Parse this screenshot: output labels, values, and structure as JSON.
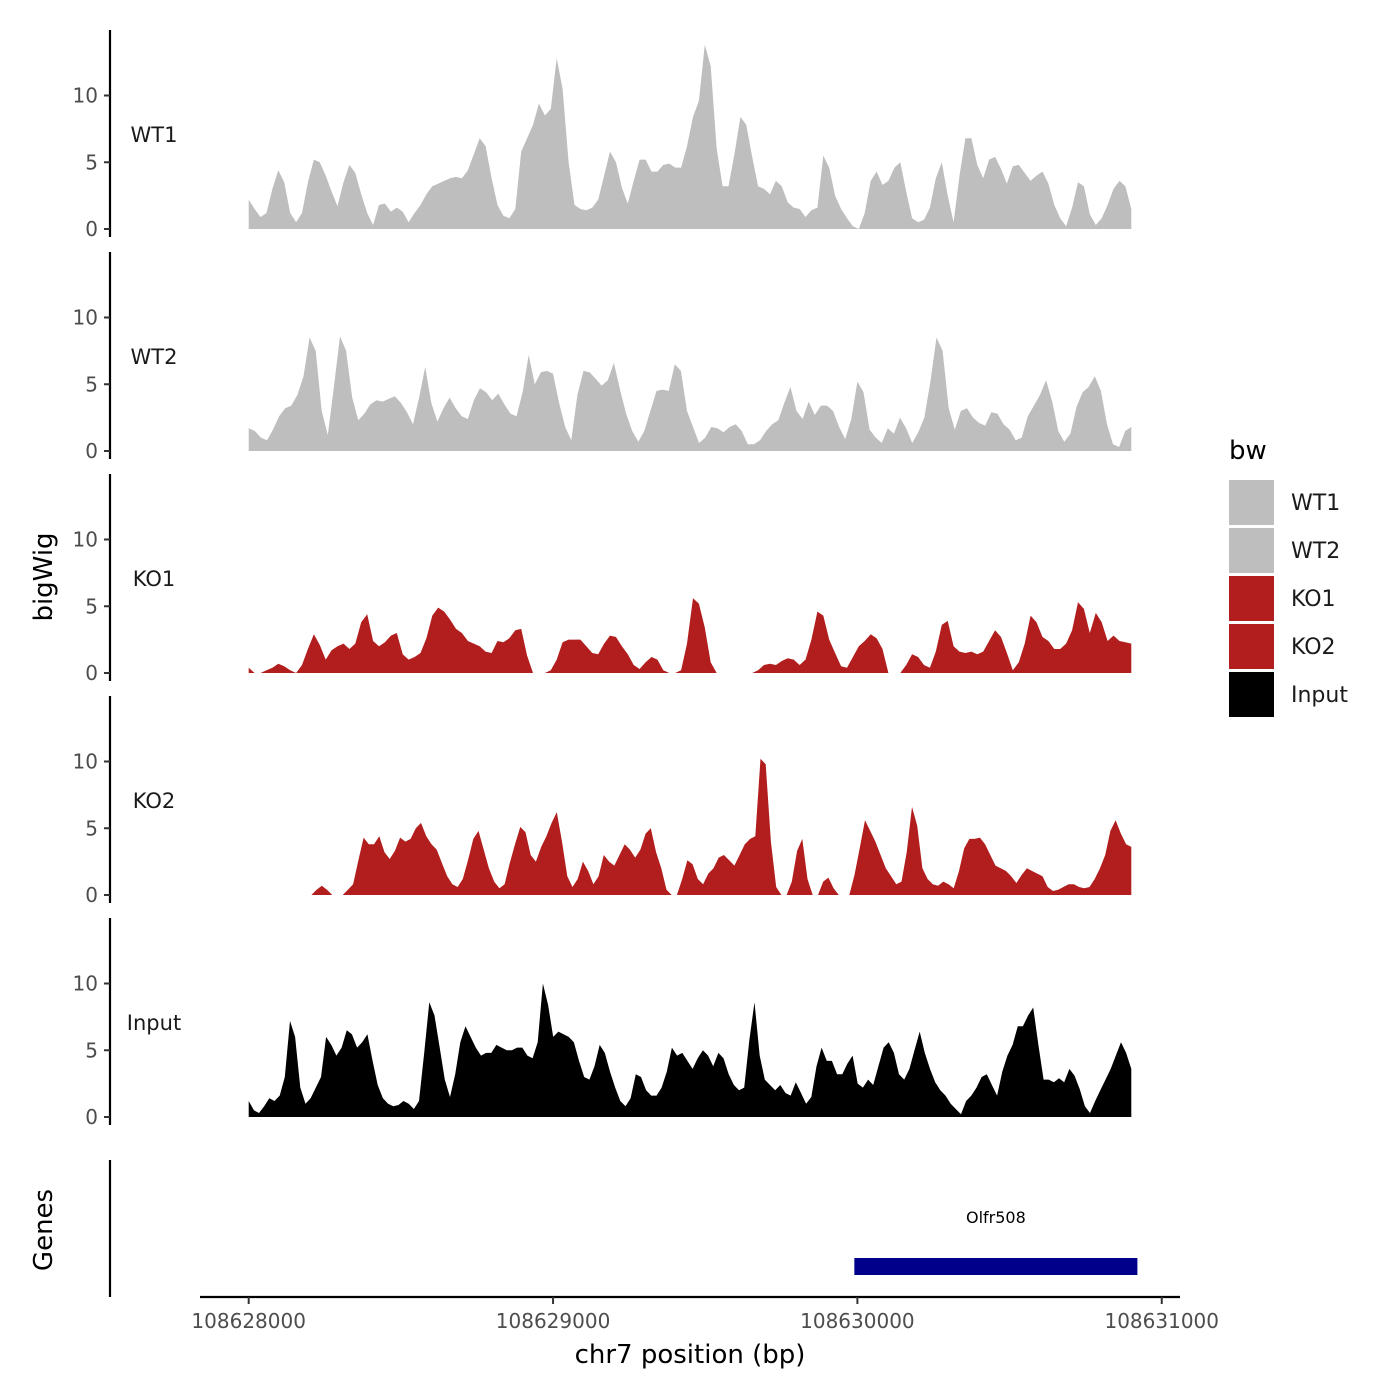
{
  "chart_data": {
    "type": "area",
    "title": "",
    "ylabel": "bigWig",
    "xlabel": "chr7 position (bp)",
    "xlim": [
      108627840,
      108631060
    ],
    "ylim": [
      0,
      14.5
    ],
    "x_ticks": [
      108628000,
      108629000,
      108630000,
      108631000
    ],
    "x_tick_labels": [
      "108628000",
      "108629000",
      "108630000",
      "108631000"
    ],
    "y_ticks": [
      0,
      5,
      10
    ],
    "y_tick_labels": [
      "0",
      "5",
      "10"
    ],
    "legend": {
      "title": "bw",
      "position": "right",
      "entries": [
        {
          "label": "WT1",
          "color": "#bebebe"
        },
        {
          "label": "WT2",
          "color": "#bebebe"
        },
        {
          "label": "KO1",
          "color": "#b21e1e"
        },
        {
          "label": "KO2",
          "color": "#b21e1e"
        },
        {
          "label": "Input",
          "color": "#000000"
        }
      ]
    },
    "series": [
      {
        "name": "WT1",
        "color": "#bebebe",
        "x_start": 108628000,
        "x_end": 108630900,
        "values": [
          2.2,
          1.5,
          0.9,
          1.2,
          3.0,
          4.4,
          3.5,
          1.2,
          0.5,
          1.2,
          3.5,
          5.2,
          5.0,
          4.0,
          2.8,
          1.7,
          3.5,
          4.8,
          4.2,
          2.6,
          1.2,
          0.3,
          1.8,
          1.9,
          1.3,
          1.6,
          1.3,
          0.5,
          1.2,
          1.8,
          2.6,
          3.2,
          3.4,
          3.6,
          3.8,
          3.9,
          3.8,
          4.4,
          5.6,
          6.8,
          6.2,
          3.8,
          1.8,
          1.0,
          0.8,
          1.5,
          5.8,
          6.8,
          7.8,
          9.4,
          8.5,
          9.0,
          12.8,
          10.5,
          5.0,
          1.8,
          1.5,
          1.4,
          1.6,
          2.2,
          4.0,
          5.8,
          5.0,
          3.1,
          1.9,
          3.6,
          5.2,
          5.2,
          4.3,
          4.3,
          4.8,
          4.9,
          4.6,
          4.6,
          6.2,
          8.4,
          9.6,
          13.8,
          12.2,
          6.0,
          3.2,
          3.2,
          5.6,
          8.4,
          7.8,
          5.4,
          3.2,
          3.0,
          2.6,
          3.6,
          3.2,
          2.0,
          1.6,
          1.5,
          0.9,
          1.4,
          1.6,
          5.5,
          4.6,
          2.5,
          1.5,
          0.8,
          0.2,
          0,
          1.2,
          3.6,
          4.3,
          3.3,
          3.6,
          4.6,
          5.0,
          2.8,
          0.8,
          0.5,
          0.7,
          1.6,
          3.8,
          5.0,
          2.5,
          0.5,
          4.0,
          6.8,
          6.8,
          4.8,
          3.8,
          5.2,
          5.4,
          4.5,
          3.4,
          4.7,
          4.8,
          4.2,
          3.6,
          4.0,
          4.3,
          3.4,
          1.8,
          0.8,
          0.2,
          1.6,
          3.5,
          3.2,
          1.1,
          0.3,
          0.8,
          1.8,
          3.0,
          3.6,
          3.2,
          1.5
        ]
      },
      {
        "name": "WT2",
        "color": "#bebebe",
        "x_start": 108628000,
        "x_end": 108630900,
        "values": [
          1.7,
          1.5,
          1.0,
          0.8,
          1.6,
          2.6,
          3.2,
          3.4,
          4.2,
          5.6,
          8.5,
          7.5,
          3.0,
          1.2,
          4.8,
          8.6,
          7.5,
          4.0,
          2.3,
          2.8,
          3.5,
          3.8,
          3.7,
          3.9,
          4.1,
          3.6,
          2.9,
          2.0,
          4.0,
          6.3,
          3.6,
          2.2,
          3.2,
          4.0,
          3.2,
          2.6,
          2.4,
          3.8,
          4.7,
          4.4,
          3.8,
          4.3,
          3.5,
          2.8,
          2.6,
          4.4,
          7.2,
          5.0,
          5.9,
          6.0,
          5.8,
          3.6,
          1.8,
          0.8,
          4.2,
          6.0,
          5.9,
          5.4,
          4.9,
          5.3,
          6.6,
          4.6,
          2.8,
          1.5,
          0.7,
          1.5,
          3.0,
          4.5,
          4.6,
          4.5,
          6.5,
          6.0,
          3.0,
          1.8,
          0.6,
          1.0,
          1.8,
          1.7,
          1.4,
          1.8,
          2.0,
          1.5,
          0.5,
          0.5,
          0.8,
          1.5,
          2.0,
          2.3,
          3.6,
          4.8,
          3.0,
          2.4,
          3.7,
          2.7,
          3.4,
          3.4,
          3.0,
          1.8,
          0.9,
          2.4,
          5.2,
          4.4,
          1.6,
          1.0,
          0.6,
          1.7,
          1.3,
          2.5,
          1.7,
          0.6,
          1.4,
          2.5,
          5.2,
          8.5,
          7.5,
          3.2,
          1.6,
          3.0,
          3.2,
          2.5,
          2.1,
          1.9,
          2.9,
          2.8,
          2.0,
          1.6,
          0.8,
          1.0,
          2.6,
          3.4,
          4.2,
          5.3,
          3.7,
          1.5,
          0.7,
          1.3,
          3.3,
          4.4,
          4.8,
          5.6,
          4.5,
          2.0,
          0.5,
          0.3,
          1.5,
          1.8
        ]
      },
      {
        "name": "KO1",
        "color": "#b21e1e",
        "x_start": 108628000,
        "x_end": 108630900,
        "values": [
          0.4,
          0,
          0,
          0.2,
          0.4,
          0.7,
          0.5,
          0.2,
          0,
          0.6,
          1.8,
          2.9,
          2.1,
          1.0,
          1.7,
          2.0,
          2.2,
          1.8,
          2.2,
          3.8,
          4.4,
          2.4,
          2.0,
          2.3,
          2.8,
          3.0,
          1.4,
          1.0,
          1.2,
          1.5,
          2.6,
          4.3,
          4.9,
          4.6,
          4.0,
          3.3,
          3.0,
          2.4,
          2.2,
          2.0,
          1.6,
          1.5,
          2.4,
          2.3,
          2.6,
          3.2,
          3.3,
          1.3,
          0,
          0,
          0,
          0.2,
          1.0,
          2.3,
          2.5,
          2.5,
          2.5,
          2.0,
          1.5,
          1.4,
          2.2,
          2.8,
          2.7,
          2.0,
          1.4,
          0.6,
          0.3,
          0.8,
          1.2,
          1.0,
          0.2,
          0,
          0,
          0.2,
          2.2,
          5.6,
          5.2,
          3.4,
          0.8,
          0,
          0,
          0,
          0,
          0,
          0,
          0,
          0.2,
          0.6,
          0.7,
          0.6,
          0.9,
          1.1,
          1.0,
          0.6,
          1.0,
          2.5,
          4.6,
          4.3,
          2.5,
          1.5,
          0.5,
          0.4,
          1.2,
          2.0,
          2.4,
          2.9,
          2.6,
          1.8,
          0,
          0,
          0,
          0.6,
          1.4,
          1.2,
          0.6,
          0.4,
          1.6,
          3.6,
          3.9,
          2.0,
          1.6,
          1.5,
          1.6,
          1.4,
          1.6,
          2.4,
          3.2,
          2.7,
          1.5,
          0.2,
          0.8,
          2.2,
          4.3,
          3.8,
          2.7,
          2.4,
          1.8,
          1.8,
          2.2,
          3.2,
          5.3,
          4.8,
          3.0,
          4.5,
          3.8,
          2.4,
          2.8,
          2.4,
          2.3,
          2.2
        ]
      },
      {
        "name": "KO2",
        "color": "#b21e1e",
        "x_start": 108628000,
        "x_end": 108630900,
        "values": [
          0,
          0,
          0,
          0,
          0,
          0,
          0,
          0,
          0,
          0,
          0,
          0,
          0,
          0.4,
          0.7,
          0.4,
          0,
          0,
          0,
          0.4,
          0.8,
          2.6,
          4.3,
          3.8,
          3.8,
          4.4,
          3.2,
          2.7,
          3.3,
          4.3,
          4.0,
          4.2,
          5.0,
          5.4,
          4.4,
          3.8,
          3.4,
          2.4,
          1.4,
          0.8,
          0.6,
          1.2,
          2.6,
          4.2,
          4.8,
          3.4,
          2.0,
          1.0,
          0.5,
          0.8,
          2.4,
          3.8,
          5.1,
          4.7,
          3.0,
          2.5,
          3.6,
          4.4,
          5.4,
          6.2,
          4.0,
          1.4,
          0.6,
          1.2,
          2.5,
          1.8,
          0.8,
          1.4,
          3.0,
          2.5,
          2.2,
          3.0,
          3.8,
          3.4,
          2.8,
          3.4,
          4.6,
          5.0,
          3.2,
          2.0,
          0.4,
          0,
          0,
          1.2,
          2.6,
          2.3,
          1.2,
          0.8,
          1.6,
          2.0,
          2.8,
          3.0,
          2.6,
          2.2,
          3.0,
          3.8,
          4.2,
          4.4,
          10.2,
          9.8,
          4.0,
          0.6,
          0,
          0,
          1.0,
          3.3,
          4.2,
          1.2,
          0,
          0,
          1.0,
          1.3,
          0.5,
          0,
          0,
          0,
          1.5,
          3.5,
          5.6,
          4.8,
          4.0,
          3.0,
          2.0,
          1.4,
          0.8,
          1.0,
          3.2,
          6.6,
          5.2,
          2.0,
          1.2,
          0.8,
          0.7,
          1.0,
          0.8,
          0.5,
          1.8,
          3.5,
          4.2,
          4.2,
          4.3,
          3.8,
          3.0,
          2.2,
          2.0,
          1.8,
          1.4,
          0.9,
          1.5,
          2.0,
          1.8,
          1.6,
          1.4,
          0.6,
          0.3,
          0.4,
          0.6,
          0.8,
          0.8,
          0.6,
          0.5,
          0.6,
          1.2,
          2.0,
          3.0,
          4.8,
          5.6,
          4.6,
          3.8,
          3.6
        ]
      },
      {
        "name": "Input",
        "color": "#000000",
        "x_start": 108628000,
        "x_end": 108630900,
        "values": [
          1.2,
          0.5,
          0.3,
          0.8,
          1.4,
          1.2,
          1.6,
          3.0,
          7.2,
          6.0,
          2.2,
          1.0,
          1.4,
          2.2,
          3.0,
          6.0,
          5.4,
          4.6,
          5.2,
          6.5,
          6.2,
          5.2,
          5.6,
          6.2,
          4.2,
          2.4,
          1.4,
          1.0,
          0.8,
          0.9,
          1.2,
          1.0,
          0.6,
          1.2,
          4.8,
          8.6,
          7.6,
          5.2,
          2.8,
          1.5,
          3.2,
          5.6,
          6.8,
          6.0,
          5.2,
          4.6,
          4.8,
          4.8,
          5.4,
          5.2,
          5.0,
          5.0,
          5.2,
          5.2,
          4.6,
          4.4,
          5.6,
          10.0,
          8.4,
          6.0,
          6.4,
          6.2,
          6.0,
          5.6,
          4.2,
          3.0,
          2.8,
          3.8,
          5.4,
          4.8,
          3.4,
          2.2,
          1.2,
          0.8,
          1.4,
          3.2,
          3.0,
          2.0,
          1.6,
          1.6,
          2.2,
          3.4,
          5.2,
          4.6,
          4.8,
          4.2,
          3.6,
          4.4,
          5.0,
          4.6,
          3.8,
          4.8,
          4.4,
          3.2,
          2.4,
          2.0,
          2.2,
          5.8,
          8.6,
          4.6,
          2.8,
          2.4,
          2.0,
          2.4,
          1.8,
          1.6,
          2.6,
          1.8,
          1.0,
          1.5,
          3.8,
          5.2,
          4.2,
          4.2,
          3.2,
          3.2,
          4.0,
          4.6,
          2.5,
          2.2,
          2.8,
          2.4,
          3.8,
          5.2,
          5.6,
          4.8,
          3.2,
          2.8,
          3.6,
          5.0,
          6.4,
          4.8,
          3.6,
          2.6,
          2.0,
          1.6,
          1.0,
          0.6,
          0.2,
          1.2,
          1.6,
          2.2,
          3.0,
          3.2,
          2.4,
          1.6,
          3.4,
          4.6,
          5.4,
          6.8,
          6.8,
          7.6,
          8.2,
          5.4,
          2.8,
          2.8,
          2.6,
          2.9,
          2.6,
          3.6,
          3.1,
          2.1,
          0.8,
          0.3,
          1.2,
          2.0,
          2.8,
          3.6,
          4.6,
          5.6,
          4.8,
          3.6
        ]
      }
    ],
    "genes_panel": {
      "ylabel": "Genes",
      "genes": [
        {
          "name": "Olfr508",
          "start": 108629990,
          "end": 108630920,
          "color": "#00008b",
          "strand": "-"
        }
      ]
    }
  }
}
